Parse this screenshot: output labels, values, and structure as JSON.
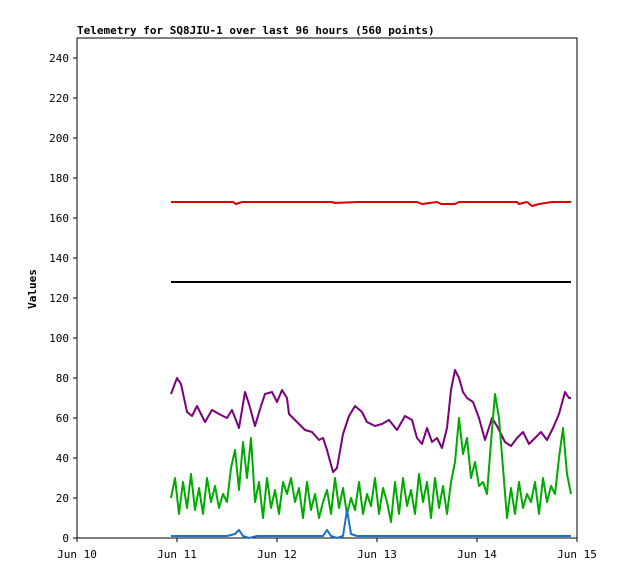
{
  "chart_data": {
    "type": "line",
    "title": "Telemetry for SQ8JIU-1 over last 96 hours (560 points)",
    "xlabel": "",
    "ylabel": "Values",
    "x_ticks": [
      "Jun 10",
      "Jun 11",
      "Jun 12",
      "Jun 13",
      "Jun 14",
      "Jun 15"
    ],
    "xlim": [
      0,
      5
    ],
    "ylim": [
      0,
      250
    ],
    "y_ticks": [
      0,
      20,
      40,
      60,
      80,
      100,
      120,
      140,
      160,
      180,
      200,
      220,
      240
    ],
    "grid": false,
    "legend": "none",
    "series": [
      {
        "color": "#e00000",
        "x": [
          0.94,
          1.2,
          1.4,
          1.56,
          1.59,
          1.65,
          1.8,
          2.0,
          2.3,
          2.55,
          2.58,
          2.8,
          3.1,
          3.4,
          3.45,
          3.6,
          3.64,
          3.78,
          3.82,
          4.1,
          4.4,
          4.42,
          4.5,
          4.55,
          4.62,
          4.75,
          4.94
        ],
        "y": [
          168,
          168,
          168,
          168,
          167,
          168,
          168,
          168,
          168,
          168,
          167.5,
          168,
          168,
          168,
          167,
          168,
          167,
          167,
          168,
          168,
          168,
          167,
          168,
          166,
          167,
          168,
          168
        ]
      },
      {
        "color": "#000000",
        "x": [
          0.94,
          4.94
        ],
        "y": [
          128,
          128
        ]
      },
      {
        "color": "#7b007b",
        "x": [
          0.94,
          1.0,
          1.04,
          1.1,
          1.15,
          1.2,
          1.28,
          1.35,
          1.42,
          1.5,
          1.55,
          1.62,
          1.68,
          1.72,
          1.78,
          1.84,
          1.88,
          1.95,
          2.0,
          2.05,
          2.1,
          2.12,
          2.2,
          2.28,
          2.35,
          2.42,
          2.46,
          2.5,
          2.56,
          2.6,
          2.66,
          2.72,
          2.78,
          2.85,
          2.9,
          2.98,
          3.05,
          3.12,
          3.2,
          3.28,
          3.35,
          3.4,
          3.45,
          3.5,
          3.55,
          3.6,
          3.65,
          3.7,
          3.74,
          3.78,
          3.82,
          3.86,
          3.9,
          3.96,
          4.02,
          4.08,
          4.15,
          4.2,
          4.28,
          4.34,
          4.4,
          4.46,
          4.52,
          4.58,
          4.64,
          4.7,
          4.76,
          4.82,
          4.88,
          4.92,
          4.94
        ],
        "y": [
          72,
          80,
          77,
          63,
          61,
          66,
          58,
          64,
          62,
          60,
          64,
          55,
          73,
          67,
          56,
          66,
          72,
          73,
          68,
          74,
          70,
          62,
          58,
          54,
          53,
          49,
          50,
          44,
          33,
          35,
          52,
          61,
          66,
          63,
          58,
          56,
          57,
          59,
          54,
          61,
          59,
          50,
          47,
          55,
          48,
          50,
          45,
          55,
          74,
          84,
          80,
          73,
          70,
          68,
          60,
          49,
          60,
          56,
          48,
          46,
          50,
          53,
          47,
          50,
          53,
          49,
          55,
          62,
          73,
          70,
          70
        ]
      },
      {
        "color": "#00aa00",
        "x": [
          0.94,
          0.98,
          1.02,
          1.06,
          1.1,
          1.14,
          1.18,
          1.22,
          1.26,
          1.3,
          1.34,
          1.38,
          1.42,
          1.46,
          1.5,
          1.54,
          1.58,
          1.62,
          1.66,
          1.7,
          1.74,
          1.78,
          1.82,
          1.86,
          1.9,
          1.94,
          1.98,
          2.02,
          2.06,
          2.1,
          2.14,
          2.18,
          2.22,
          2.26,
          2.3,
          2.34,
          2.38,
          2.42,
          2.46,
          2.5,
          2.54,
          2.58,
          2.62,
          2.66,
          2.7,
          2.74,
          2.78,
          2.82,
          2.86,
          2.9,
          2.94,
          2.98,
          3.02,
          3.06,
          3.1,
          3.14,
          3.18,
          3.22,
          3.26,
          3.3,
          3.34,
          3.38,
          3.42,
          3.46,
          3.5,
          3.54,
          3.58,
          3.62,
          3.66,
          3.7,
          3.74,
          3.78,
          3.82,
          3.86,
          3.9,
          3.94,
          3.98,
          4.02,
          4.06,
          4.1,
          4.14,
          4.18,
          4.22,
          4.26,
          4.3,
          4.34,
          4.38,
          4.42,
          4.46,
          4.5,
          4.54,
          4.58,
          4.62,
          4.66,
          4.7,
          4.74,
          4.78,
          4.82,
          4.86,
          4.9,
          4.94
        ],
        "y": [
          20,
          30,
          12,
          28,
          15,
          32,
          14,
          25,
          12,
          30,
          18,
          26,
          15,
          22,
          18,
          35,
          44,
          24,
          48,
          30,
          50,
          18,
          28,
          10,
          30,
          15,
          24,
          12,
          28,
          22,
          30,
          18,
          25,
          10,
          28,
          14,
          22,
          10,
          18,
          24,
          12,
          30,
          15,
          25,
          12,
          20,
          14,
          28,
          12,
          22,
          16,
          30,
          12,
          25,
          18,
          8,
          28,
          12,
          30,
          16,
          24,
          12,
          32,
          18,
          28,
          10,
          30,
          15,
          26,
          12,
          28,
          38,
          60,
          42,
          50,
          30,
          38,
          26,
          28,
          22,
          48,
          72,
          60,
          35,
          10,
          25,
          12,
          28,
          15,
          22,
          18,
          28,
          12,
          30,
          18,
          26,
          22,
          40,
          55,
          32,
          22
        ]
      },
      {
        "color": "#1a6fc6",
        "x": [
          0.94,
          1.2,
          1.5,
          1.58,
          1.62,
          1.66,
          1.72,
          1.8,
          2.0,
          2.3,
          2.46,
          2.5,
          2.54,
          2.6,
          2.66,
          2.7,
          2.74,
          2.8,
          3.0,
          3.4,
          3.9,
          4.3,
          4.6,
          4.94
        ],
        "y": [
          1,
          1,
          1,
          2,
          4,
          1,
          0,
          1,
          1,
          1,
          1,
          4,
          1,
          0,
          1,
          14,
          2,
          1,
          1,
          1,
          1,
          1,
          1,
          1
        ]
      }
    ]
  }
}
